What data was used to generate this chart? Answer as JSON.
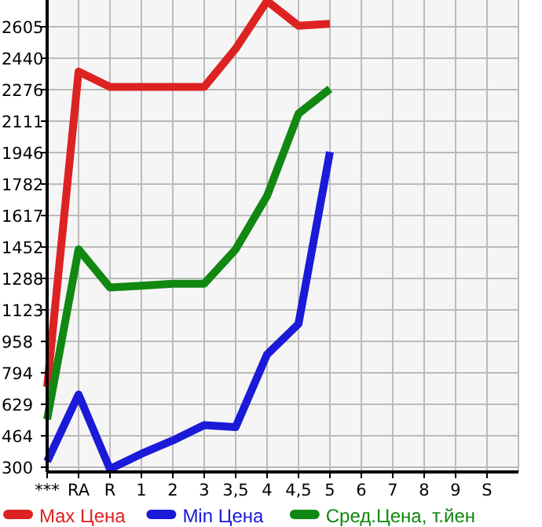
{
  "chart_data": {
    "type": "line",
    "categories": [
      "***",
      "RA",
      "R",
      "1",
      "2",
      "3",
      "3,5",
      "4",
      "4,5",
      "5",
      "6",
      "7",
      "8",
      "9",
      "S"
    ],
    "series": [
      {
        "name": "Max Цена",
        "color": "#dd2222",
        "values": [
          720,
          2370,
          2290,
          2290,
          2290,
          2290,
          2490,
          2740,
          2610,
          2620,
          null,
          null,
          null,
          null,
          null
        ]
      },
      {
        "name": "Min Цена",
        "color": "#1a1ad8",
        "values": [
          330,
          680,
          290,
          370,
          440,
          520,
          510,
          890,
          1050,
          1950,
          null,
          null,
          null,
          null,
          null
        ]
      },
      {
        "name": "Сред.Цена, т.йен",
        "color": "#118811",
        "values": [
          550,
          1440,
          1240,
          1250,
          1260,
          1260,
          1440,
          1720,
          2150,
          2280,
          null,
          null,
          null,
          null,
          null
        ]
      }
    ],
    "ylim": [
      275,
      2745
    ],
    "yticks": [
      300,
      464,
      629,
      794,
      958,
      1123,
      1288,
      1452,
      1617,
      1782,
      1946,
      2111,
      2276,
      2440,
      2605
    ],
    "grid": true,
    "legend": "bottom",
    "marker": "none",
    "line_style": "solid"
  }
}
